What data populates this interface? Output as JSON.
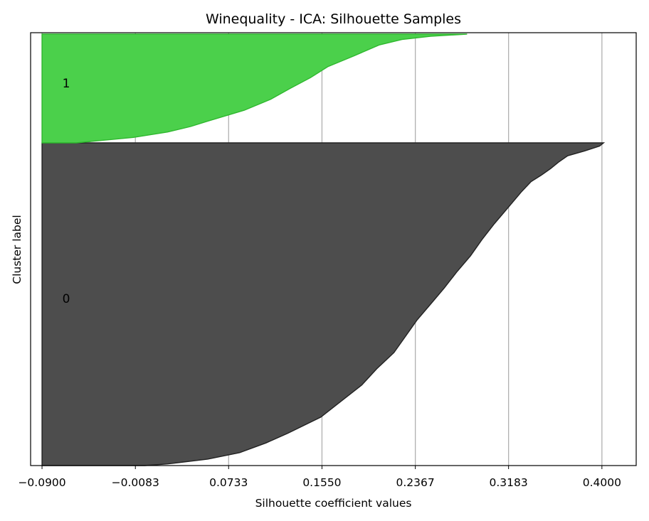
{
  "chart_data": {
    "type": "area",
    "title": "Winequality - ICA: Silhouette Samples",
    "xlabel": "Silhouette coefficient values",
    "ylabel": "Cluster label",
    "xlim": [
      -0.1,
      0.43
    ],
    "xticks": [
      -0.09,
      -0.0083,
      0.0733,
      0.155,
      0.2367,
      0.3183,
      0.4
    ],
    "xtick_labels": [
      "−0.0900",
      "−0.0083",
      "0.0733",
      "0.1550",
      "0.2367",
      "0.3183",
      "0.4000"
    ],
    "grid": "vertical",
    "legend": "none",
    "baseline_x": -0.09,
    "clusters": [
      {
        "label": "0",
        "color": "#4d4d4d",
        "edge": "#222222",
        "size": 1000,
        "profile": [
          [
            0.0,
            0.4015
          ],
          [
            0.01,
            0.398
          ],
          [
            0.025,
            0.385
          ],
          [
            0.04,
            0.37
          ],
          [
            0.06,
            0.362
          ],
          [
            0.08,
            0.355
          ],
          [
            0.1,
            0.347
          ],
          [
            0.12,
            0.338
          ],
          [
            0.15,
            0.33
          ],
          [
            0.2,
            0.318
          ],
          [
            0.25,
            0.306
          ],
          [
            0.3,
            0.295
          ],
          [
            0.35,
            0.285
          ],
          [
            0.4,
            0.273
          ],
          [
            0.45,
            0.262
          ],
          [
            0.5,
            0.25
          ],
          [
            0.55,
            0.238
          ],
          [
            0.6,
            0.228
          ],
          [
            0.65,
            0.218
          ],
          [
            0.7,
            0.203
          ],
          [
            0.75,
            0.19
          ],
          [
            0.8,
            0.172
          ],
          [
            0.85,
            0.154
          ],
          [
            0.9,
            0.125
          ],
          [
            0.93,
            0.106
          ],
          [
            0.96,
            0.083
          ],
          [
            0.98,
            0.055
          ],
          [
            0.995,
            0.02
          ],
          [
            1.0,
            0.0
          ]
        ]
      },
      {
        "label": "1",
        "color": "#4bd04b",
        "edge": "#2fb82f",
        "size": 340,
        "profile": [
          [
            0.0,
            0.282
          ],
          [
            0.02,
            0.25
          ],
          [
            0.05,
            0.225
          ],
          [
            0.1,
            0.205
          ],
          [
            0.2,
            0.183
          ],
          [
            0.3,
            0.16
          ],
          [
            0.4,
            0.145
          ],
          [
            0.5,
            0.127
          ],
          [
            0.6,
            0.11
          ],
          [
            0.7,
            0.087
          ],
          [
            0.8,
            0.055
          ],
          [
            0.85,
            0.04
          ],
          [
            0.9,
            0.02
          ],
          [
            0.95,
            -0.01
          ],
          [
            1.0,
            -0.06
          ]
        ]
      }
    ]
  }
}
